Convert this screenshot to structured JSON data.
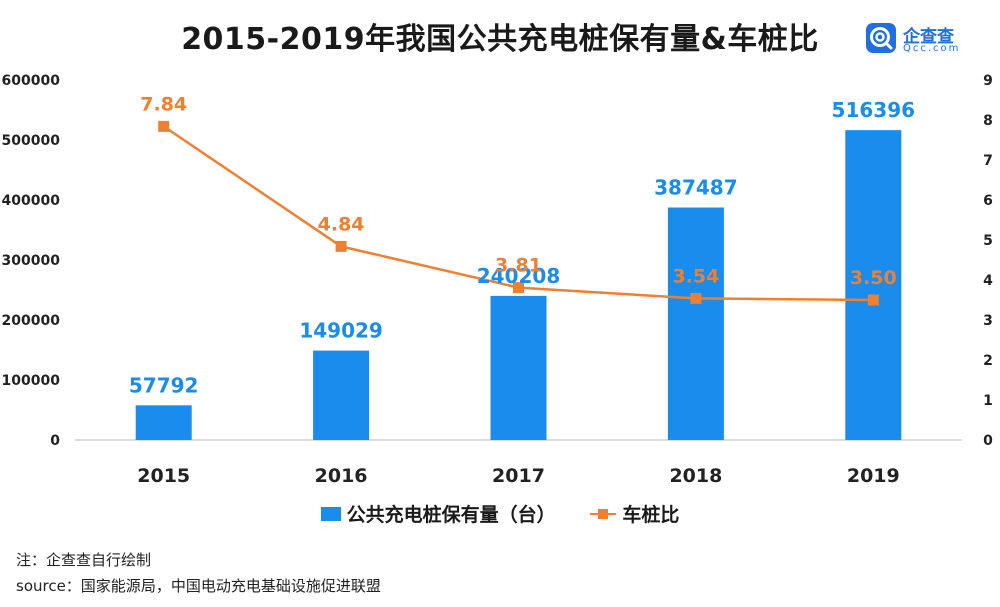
{
  "header": {
    "title": "2015-2019年我国公共充电桩保有量&车桩比"
  },
  "logo": {
    "name": "企查查",
    "sub": "Qcc.com"
  },
  "footer": {
    "note": "注：企查查自行绘制",
    "source": "source：国家能源局，中国电动充电基础设施促进联盟"
  },
  "chart_data": {
    "type": "bar",
    "title": "2015-2019年我国公共充电桩保有量&车桩比",
    "categories": [
      "2015",
      "2016",
      "2017",
      "2018",
      "2019"
    ],
    "series": [
      {
        "name": "公共充电桩保有量（台）",
        "type": "bar",
        "axis": "left",
        "color": "#1a8ceb",
        "values": [
          57792,
          149029,
          240208,
          387487,
          516396
        ],
        "labels": [
          "57792",
          "149029",
          "240208",
          "387487",
          "516396"
        ]
      },
      {
        "name": "车桩比",
        "type": "line",
        "axis": "right",
        "color": "#ef7f31",
        "values": [
          7.84,
          4.84,
          3.81,
          3.54,
          3.5
        ],
        "labels": [
          "7.84",
          "4.84",
          "3.81",
          "3.54",
          "3.50"
        ]
      }
    ],
    "y_left": {
      "min": 0,
      "max": 600000,
      "ticks": [
        "0",
        "100000",
        "200000",
        "300000",
        "400000",
        "500000",
        "600000"
      ]
    },
    "y_right": {
      "min": 0,
      "max": 9,
      "ticks": [
        "0",
        "1",
        "2",
        "3",
        "4",
        "5",
        "6",
        "7",
        "8",
        "9"
      ]
    },
    "grid": false,
    "legend_position": "bottom"
  }
}
